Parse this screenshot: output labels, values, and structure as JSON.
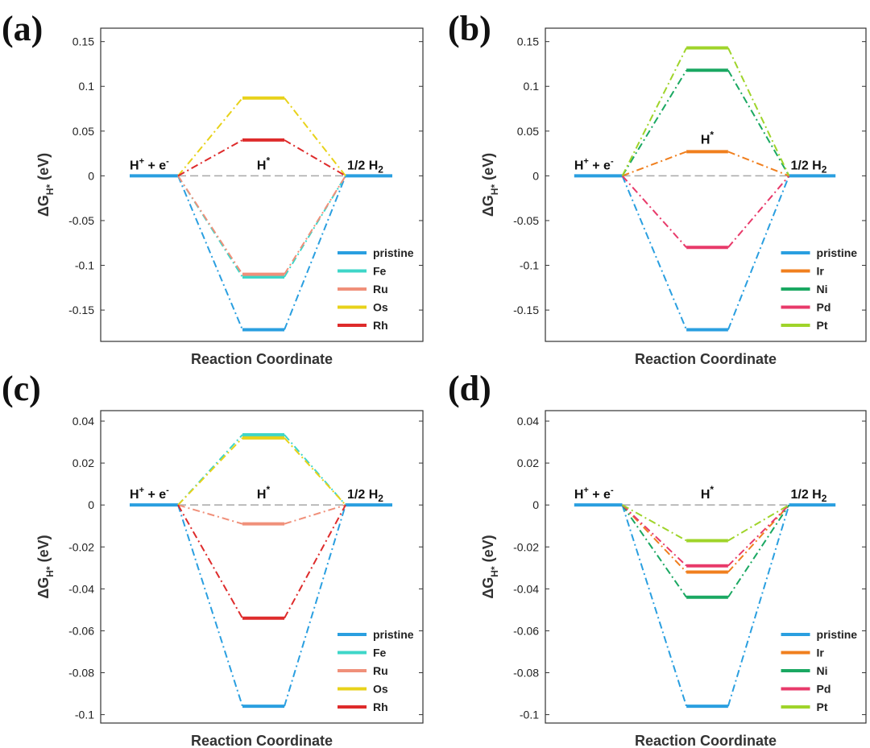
{
  "chart_data": [
    {
      "type": "line",
      "panel": "(a)",
      "xlabel": "Reaction Coordinate",
      "ylabel": "ΔG",
      "ylabel_sub": "H*",
      "ylabel_unit": "(eV)",
      "ylim": [
        -0.185,
        0.165
      ],
      "yticks": [
        -0.15,
        -0.1,
        -0.05,
        0,
        0.05,
        0.1,
        0.15
      ],
      "ytick_labels": [
        "-0.15",
        "-0.1",
        "-0.05",
        "0",
        "0.05",
        "0.1",
        "0.15"
      ],
      "states": {
        "initial": "H",
        "initial_sup": "+",
        "initial_tail": " + e",
        "initial_tail_sup": "-",
        "middle": "H",
        "middle_sup": "*",
        "final": "1/2 H",
        "final_sub": "2"
      },
      "series": [
        {
          "name": "pristine",
          "color": "#2a9fe0",
          "value": -0.172
        },
        {
          "name": "Fe",
          "color": "#3ed6c8",
          "value": -0.113
        },
        {
          "name": "Ru",
          "color": "#f0907a",
          "value": -0.11
        },
        {
          "name": "Os",
          "color": "#e8d21a",
          "value": 0.087
        },
        {
          "name": "Rh",
          "color": "#de2b2b",
          "value": 0.04
        }
      ]
    },
    {
      "type": "line",
      "panel": "(b)",
      "xlabel": "Reaction Coordinate",
      "ylabel": "ΔG",
      "ylabel_sub": "H*",
      "ylabel_unit": "(eV)",
      "ylim": [
        -0.185,
        0.165
      ],
      "yticks": [
        -0.15,
        -0.1,
        -0.05,
        0,
        0.05,
        0.1,
        0.15
      ],
      "ytick_labels": [
        "-0.15",
        "-0.1",
        "-0.05",
        "0",
        "0.05",
        "0.1",
        "0.15"
      ],
      "states": {
        "initial": "H",
        "initial_sup": "+",
        "initial_tail": " + e",
        "initial_tail_sup": "-",
        "middle": "H",
        "middle_sup": "*",
        "final": "1/2 H",
        "final_sub": "2"
      },
      "series": [
        {
          "name": "pristine",
          "color": "#2a9fe0",
          "value": -0.172
        },
        {
          "name": "Ir",
          "color": "#f07f1e",
          "value": 0.027
        },
        {
          "name": "Ni",
          "color": "#1aa862",
          "value": 0.118
        },
        {
          "name": "Pd",
          "color": "#e83a6a",
          "value": -0.08
        },
        {
          "name": "Pt",
          "color": "#9fd42a",
          "value": 0.143
        }
      ]
    },
    {
      "type": "line",
      "panel": "(c)",
      "xlabel": "Reaction Coordinate",
      "ylabel": "ΔG",
      "ylabel_sub": "H*",
      "ylabel_unit": "(eV)",
      "ylim": [
        -0.104,
        0.045
      ],
      "yticks": [
        -0.1,
        -0.08,
        -0.06,
        -0.04,
        -0.02,
        0,
        0.02,
        0.04
      ],
      "ytick_labels": [
        "-0.1",
        "-0.08",
        "-0.06",
        "-0.04",
        "-0.02",
        "0",
        "0.02",
        "0.04"
      ],
      "states": {
        "initial": "H",
        "initial_sup": "+",
        "initial_tail": " + e",
        "initial_tail_sup": "-",
        "middle": "H",
        "middle_sup": "*",
        "final": "1/2 H",
        "final_sub": "2"
      },
      "series": [
        {
          "name": "pristine",
          "color": "#2a9fe0",
          "value": -0.096
        },
        {
          "name": "Fe",
          "color": "#3ed6c8",
          "value": 0.0335
        },
        {
          "name": "Ru",
          "color": "#f0907a",
          "value": -0.009
        },
        {
          "name": "Os",
          "color": "#e8d21a",
          "value": 0.032
        },
        {
          "name": "Rh",
          "color": "#de2b2b",
          "value": -0.054
        }
      ]
    },
    {
      "type": "line",
      "panel": "(d)",
      "xlabel": "Reaction Coordinate",
      "ylabel": "ΔG",
      "ylabel_sub": "H*",
      "ylabel_unit": "(eV)",
      "ylim": [
        -0.104,
        0.045
      ],
      "yticks": [
        -0.1,
        -0.08,
        -0.06,
        -0.04,
        -0.02,
        0,
        0.02,
        0.04
      ],
      "ytick_labels": [
        "-0.1",
        "-0.08",
        "-0.06",
        "-0.04",
        "-0.02",
        "0",
        "0.02",
        "0.04"
      ],
      "states": {
        "initial": "H",
        "initial_sup": "+",
        "initial_tail": " + e",
        "initial_tail_sup": "-",
        "middle": "H",
        "middle_sup": "*",
        "final": "1/2 H",
        "final_sub": "2"
      },
      "series": [
        {
          "name": "pristine",
          "color": "#2a9fe0",
          "value": -0.096
        },
        {
          "name": "Ir",
          "color": "#f07f1e",
          "value": -0.032
        },
        {
          "name": "Ni",
          "color": "#1aa862",
          "value": -0.044
        },
        {
          "name": "Pd",
          "color": "#e83a6a",
          "value": -0.029
        },
        {
          "name": "Pt",
          "color": "#9fd42a",
          "value": -0.017
        }
      ]
    }
  ]
}
